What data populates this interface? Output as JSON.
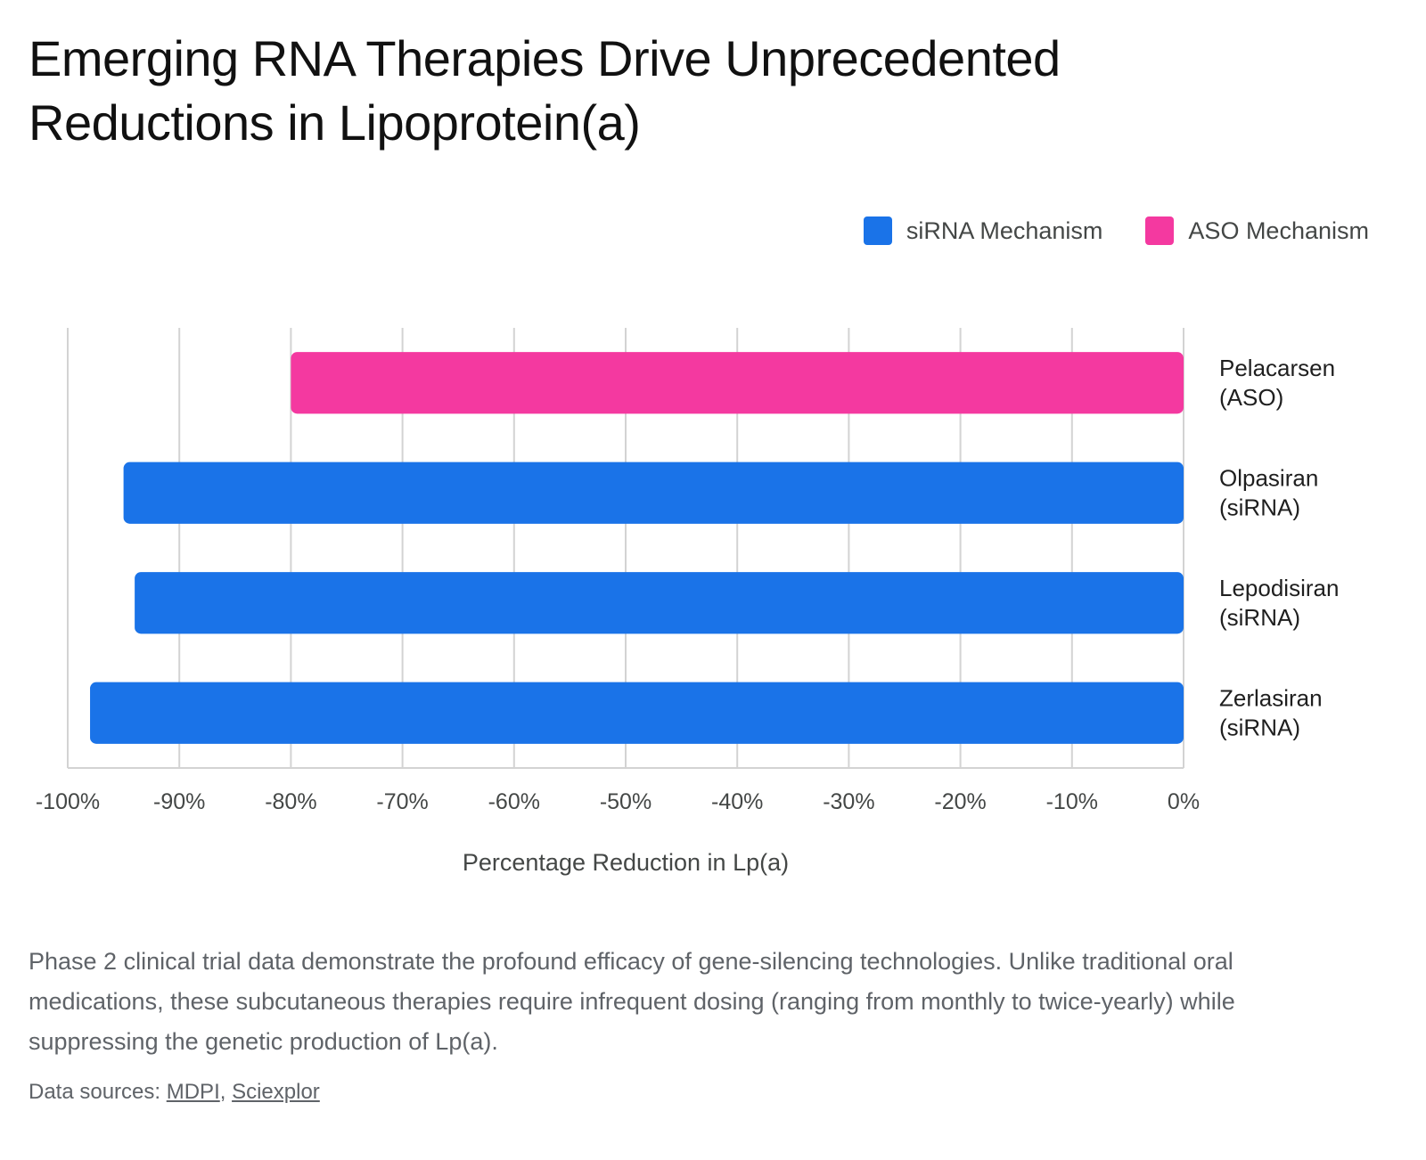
{
  "title": "Emerging RNA Therapies Drive Unprecedented Reductions in Lipoprotein(a)",
  "legend": [
    {
      "label": "siRNA Mechanism",
      "color": "#1a73e8"
    },
    {
      "label": "ASO Mechanism",
      "color": "#f439a0"
    }
  ],
  "chart_data": {
    "type": "bar",
    "orientation": "horizontal",
    "categories": [
      "Pelacarsen (ASO)",
      "Olpasiran (siRNA)",
      "Lepodisiran (siRNA)",
      "Zerlasiran (siRNA)"
    ],
    "category_lines": [
      [
        "Pelacarsen",
        "(ASO)"
      ],
      [
        "Olpasiran",
        "(siRNA)"
      ],
      [
        "Lepodisiran",
        "(siRNA)"
      ],
      [
        "Zerlasiran",
        "(siRNA)"
      ]
    ],
    "values": [
      -80,
      -95,
      -94,
      -98
    ],
    "mechanism": [
      "ASO Mechanism",
      "siRNA Mechanism",
      "siRNA Mechanism",
      "siRNA Mechanism"
    ],
    "colors": [
      "#f439a0",
      "#1a73e8",
      "#1a73e8",
      "#1a73e8"
    ],
    "xlabel": "Percentage Reduction in Lp(a)",
    "ylabel": "",
    "xlim": [
      -100,
      0
    ],
    "ticks": [
      -100,
      -90,
      -80,
      -70,
      -60,
      -50,
      -40,
      -30,
      -20,
      -10,
      0
    ],
    "tick_labels": [
      "-100%",
      "-90%",
      "-80%",
      "-70%",
      "-60%",
      "-50%",
      "-40%",
      "-30%",
      "-20%",
      "-10%",
      "0%"
    ],
    "grid": true,
    "legend_position": "top-right"
  },
  "caption": "Phase 2 clinical trial data demonstrate the profound efficacy of gene-silencing technologies. Unlike traditional oral medications, these subcutaneous therapies require infrequent dosing (ranging from monthly to twice-yearly) while suppressing the genetic production of Lp(a).",
  "sources": {
    "prefix": "Data sources: ",
    "links": [
      "MDPI",
      "Sciexplor"
    ],
    "separator": ", "
  }
}
